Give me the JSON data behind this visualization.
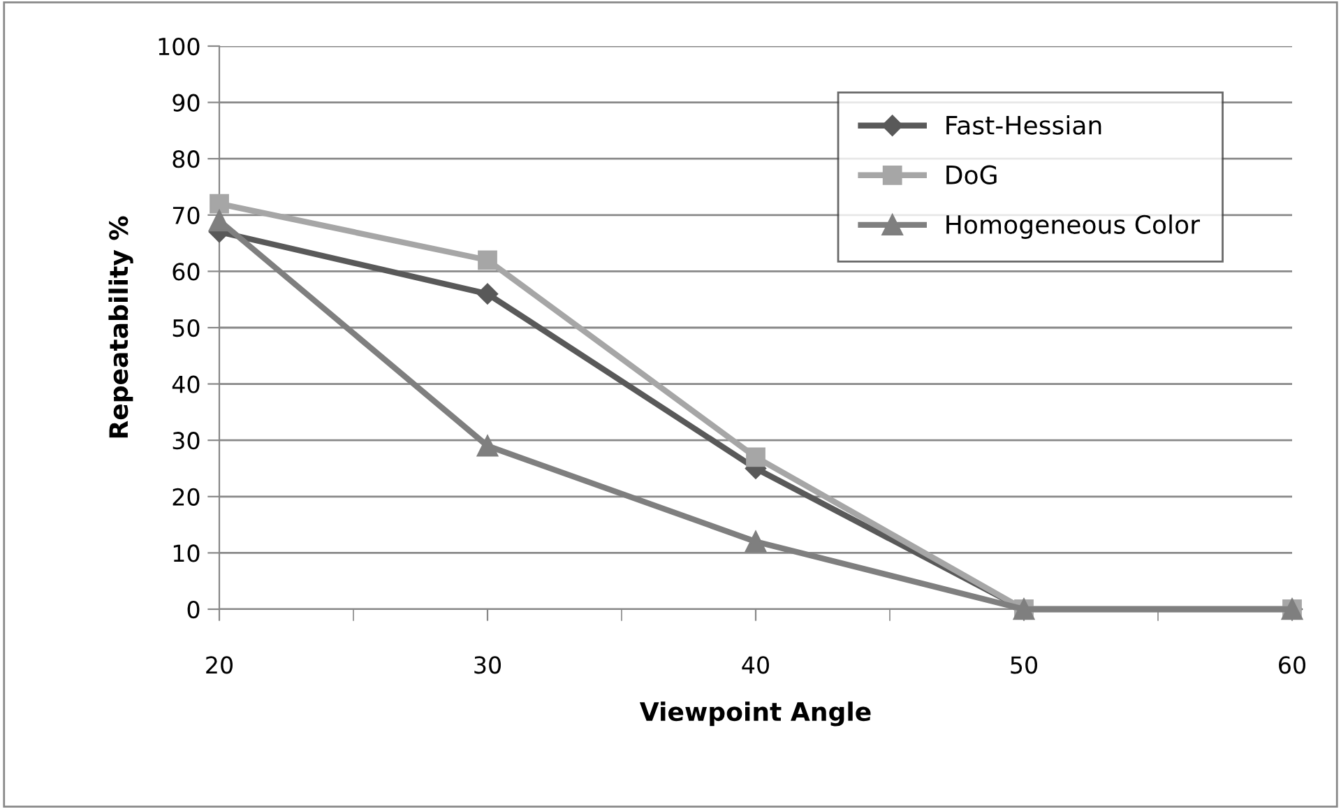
{
  "chart_data": {
    "type": "line",
    "xlabel": "Viewpoint Angle",
    "ylabel": "Repeatability %",
    "categories": [
      "20",
      "30",
      "40",
      "50",
      "60"
    ],
    "series": [
      {
        "name": "Fast-Hessian",
        "color": "#595959",
        "marker": "diamond",
        "values": [
          67,
          56,
          25,
          0,
          0
        ]
      },
      {
        "name": "DoG",
        "color": "#a6a6a6",
        "marker": "square",
        "values": [
          72,
          62,
          27,
          0,
          0
        ]
      },
      {
        "name": "Homogeneous Color",
        "color": "#7f7f7f",
        "marker": "triangle",
        "values": [
          69,
          29,
          12,
          0,
          0
        ]
      }
    ],
    "ylim": [
      0,
      100
    ],
    "yticks": [
      0,
      10,
      20,
      30,
      40,
      50,
      60,
      70,
      80,
      90,
      100
    ],
    "grid": "y",
    "legend": "top right",
    "line_style": "solid"
  }
}
